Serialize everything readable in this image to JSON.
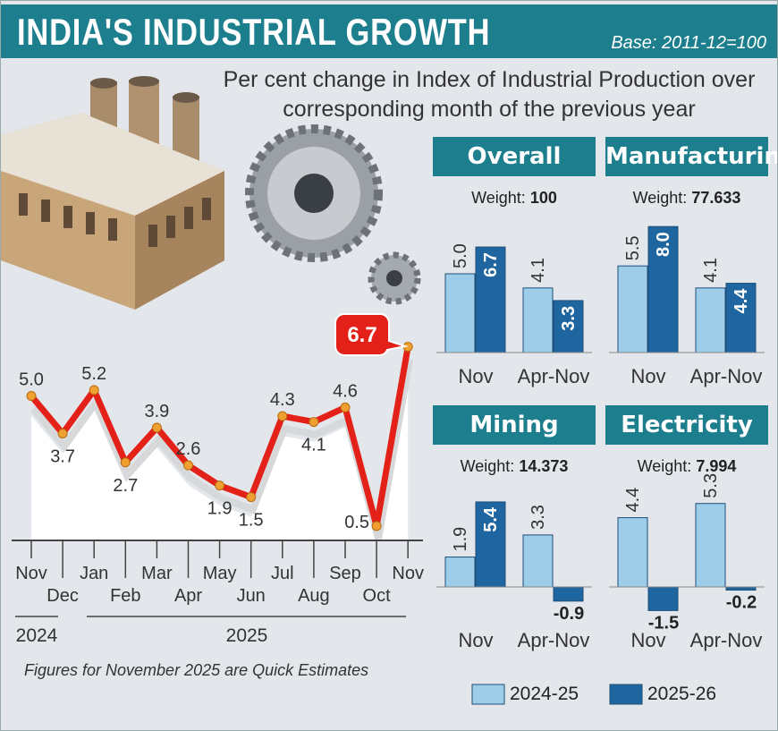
{
  "title": "INDIA'S INDUSTRIAL GROWTH",
  "base": "Base: 2011-12=100",
  "subtitle": "Per cent change in Index of Industrial Production over corresponding month of the previous year",
  "note": "Figures for November 2025 are Quick Estimates",
  "colors": {
    "header": "#1d7f8d",
    "line": "#e32119",
    "s2024": "#9dcde9",
    "s2025": "#1f66a0"
  },
  "chart_data": [
    {
      "type": "line",
      "categories": [
        "Nov",
        "Dec",
        "Jan",
        "Feb",
        "Mar",
        "Apr",
        "May",
        "Jun",
        "Jul",
        "Aug",
        "Sep",
        "Oct",
        "Nov"
      ],
      "year_labels": [
        "2024",
        "2025"
      ],
      "values": [
        5.0,
        3.7,
        5.2,
        2.7,
        3.9,
        2.6,
        1.9,
        1.5,
        4.3,
        4.1,
        4.6,
        0.5,
        6.7
      ],
      "labels": [
        "5.0",
        "3.7",
        "5.2",
        "2.7",
        "3.9",
        "2.6",
        "1.9",
        "1.5",
        "4.3",
        "4.1",
        "4.6",
        "0.5",
        "6.7"
      ],
      "highlight": "6.7"
    },
    {
      "type": "bar",
      "legend": [
        "2024-25",
        "2025-26"
      ],
      "legend_placement": "bottom-right",
      "categories": [
        "Nov",
        "Apr-Nov"
      ],
      "panels": [
        {
          "name": "Overall",
          "weight_label": "Weight:",
          "weight": "100",
          "series": [
            [
              5.0,
              4.1
            ],
            [
              6.7,
              3.3
            ]
          ],
          "labels": [
            [
              "5.0",
              "4.1"
            ],
            [
              "6.7",
              "3.3"
            ]
          ]
        },
        {
          "name": "Manufacturing",
          "weight_label": "Weight:",
          "weight": "77.633",
          "series": [
            [
              5.5,
              4.1
            ],
            [
              8.0,
              4.4
            ]
          ],
          "labels": [
            [
              "5.5",
              "4.1"
            ],
            [
              "8.0",
              "4.4"
            ]
          ]
        },
        {
          "name": "Mining",
          "weight_label": "Weight:",
          "weight": "14.373",
          "series": [
            [
              1.9,
              3.3
            ],
            [
              5.4,
              -0.9
            ]
          ],
          "labels": [
            [
              "1.9",
              "3.3"
            ],
            [
              "5.4",
              "-0.9"
            ]
          ]
        },
        {
          "name": "Electricity",
          "weight_label": "Weight:",
          "weight": "7.994",
          "series": [
            [
              4.4,
              5.3
            ],
            [
              -1.5,
              -0.2
            ]
          ],
          "labels": [
            [
              "4.4",
              "5.3"
            ],
            [
              "-1.5",
              "-0.2"
            ]
          ]
        }
      ]
    }
  ]
}
